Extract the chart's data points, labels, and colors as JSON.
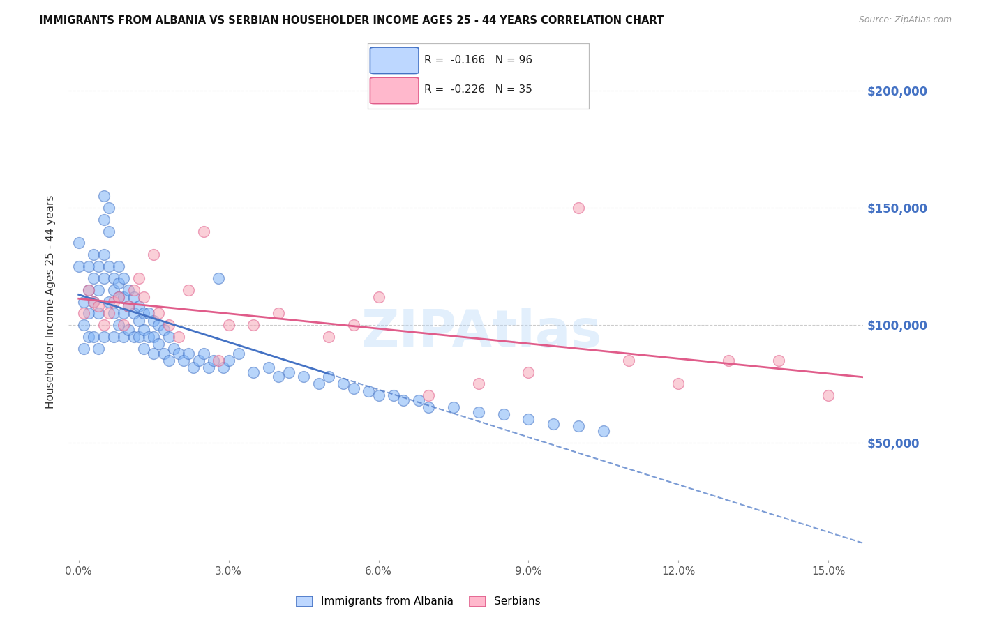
{
  "title": "IMMIGRANTS FROM ALBANIA VS SERBIAN HOUSEHOLDER INCOME AGES 25 - 44 YEARS CORRELATION CHART",
  "source": "Source: ZipAtlas.com",
  "ylabel": "Householder Income Ages 25 - 44 years",
  "xlabel_ticks": [
    "0.0%",
    "3.0%",
    "6.0%",
    "9.0%",
    "12.0%",
    "15.0%"
  ],
  "xlabel_vals": [
    0.0,
    0.03,
    0.06,
    0.09,
    0.12,
    0.15
  ],
  "ytick_labels": [
    "$50,000",
    "$100,000",
    "$150,000",
    "$200,000"
  ],
  "ytick_vals": [
    50000,
    100000,
    150000,
    200000
  ],
  "ylim": [
    0,
    220000
  ],
  "xlim": [
    -0.002,
    0.157
  ],
  "albania_R": -0.166,
  "albania_N": 96,
  "serbian_R": -0.226,
  "serbian_N": 35,
  "albania_color": "#7EB3F7",
  "albanian_line_color": "#4472C4",
  "serbian_color": "#F7A8B8",
  "serbian_line_color": "#E05C8A",
  "albania_scatter_x": [
    0.0,
    0.0,
    0.001,
    0.001,
    0.001,
    0.002,
    0.002,
    0.002,
    0.002,
    0.003,
    0.003,
    0.003,
    0.003,
    0.004,
    0.004,
    0.004,
    0.004,
    0.005,
    0.005,
    0.005,
    0.005,
    0.005,
    0.006,
    0.006,
    0.006,
    0.006,
    0.007,
    0.007,
    0.007,
    0.007,
    0.008,
    0.008,
    0.008,
    0.008,
    0.009,
    0.009,
    0.009,
    0.009,
    0.01,
    0.01,
    0.01,
    0.011,
    0.011,
    0.011,
    0.012,
    0.012,
    0.012,
    0.013,
    0.013,
    0.013,
    0.014,
    0.014,
    0.015,
    0.015,
    0.015,
    0.016,
    0.016,
    0.017,
    0.017,
    0.018,
    0.018,
    0.019,
    0.02,
    0.021,
    0.022,
    0.023,
    0.024,
    0.025,
    0.026,
    0.027,
    0.028,
    0.029,
    0.03,
    0.032,
    0.035,
    0.038,
    0.04,
    0.042,
    0.045,
    0.048,
    0.05,
    0.053,
    0.055,
    0.058,
    0.06,
    0.063,
    0.065,
    0.068,
    0.07,
    0.075,
    0.08,
    0.085,
    0.09,
    0.095,
    0.1,
    0.105
  ],
  "albania_scatter_y": [
    135000,
    125000,
    110000,
    100000,
    90000,
    125000,
    115000,
    105000,
    95000,
    130000,
    120000,
    110000,
    95000,
    125000,
    115000,
    105000,
    90000,
    155000,
    145000,
    130000,
    120000,
    95000,
    150000,
    140000,
    125000,
    110000,
    120000,
    115000,
    105000,
    95000,
    125000,
    118000,
    112000,
    100000,
    120000,
    112000,
    105000,
    95000,
    115000,
    108000,
    98000,
    112000,
    105000,
    95000,
    108000,
    102000,
    95000,
    105000,
    98000,
    90000,
    105000,
    95000,
    102000,
    95000,
    88000,
    100000,
    92000,
    98000,
    88000,
    95000,
    85000,
    90000,
    88000,
    85000,
    88000,
    82000,
    85000,
    88000,
    82000,
    85000,
    120000,
    82000,
    85000,
    88000,
    80000,
    82000,
    78000,
    80000,
    78000,
    75000,
    78000,
    75000,
    73000,
    72000,
    70000,
    70000,
    68000,
    68000,
    65000,
    65000,
    63000,
    62000,
    60000,
    58000,
    57000,
    55000
  ],
  "serbian_scatter_x": [
    0.001,
    0.002,
    0.003,
    0.004,
    0.005,
    0.006,
    0.007,
    0.008,
    0.009,
    0.01,
    0.011,
    0.012,
    0.013,
    0.015,
    0.016,
    0.018,
    0.02,
    0.022,
    0.025,
    0.028,
    0.03,
    0.035,
    0.04,
    0.05,
    0.055,
    0.06,
    0.07,
    0.08,
    0.09,
    0.1,
    0.11,
    0.12,
    0.13,
    0.14,
    0.15
  ],
  "serbian_scatter_y": [
    105000,
    115000,
    110000,
    108000,
    100000,
    105000,
    110000,
    112000,
    100000,
    108000,
    115000,
    120000,
    112000,
    130000,
    105000,
    100000,
    95000,
    115000,
    140000,
    85000,
    100000,
    100000,
    105000,
    95000,
    100000,
    112000,
    70000,
    75000,
    80000,
    150000,
    85000,
    75000,
    85000,
    85000,
    70000
  ],
  "watermark": "ZIPAtlas",
  "legend_box_color_albania": "#BDD7FF",
  "legend_box_color_serbian": "#FFB8CC",
  "background_color": "#FFFFFF",
  "grid_color": "#CCCCCC",
  "albania_trendline_x_start": 0.0,
  "albania_trendline_x_solid_end": 0.05,
  "albania_trendline_x_end": 0.157,
  "serbian_trendline_x_start": 0.0,
  "serbian_trendline_x_end": 0.157
}
